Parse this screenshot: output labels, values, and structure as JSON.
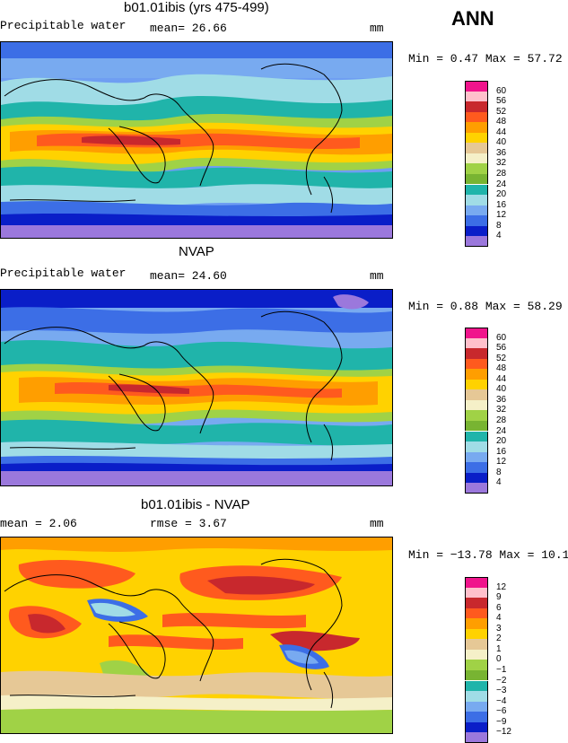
{
  "season": "ANN",
  "panels": [
    {
      "title": "b01.01ibis (yrs 475-499)",
      "left_label": "Precipitable water",
      "mid_label": "mean=  26.66",
      "units": "mm",
      "minmax": "Min =   0.47 Max =  57.72",
      "levels": [
        "60",
        "56",
        "52",
        "48",
        "44",
        "40",
        "36",
        "32",
        "28",
        "24",
        "20",
        "16",
        "12",
        "8",
        "4"
      ],
      "colors": [
        "#f0148c",
        "#ffc0cb",
        "#c8282d",
        "#ff5a1e",
        "#ff9e00",
        "#ffd200",
        "#e6c896",
        "#f5f0c8",
        "#a0d246",
        "#78b432",
        "#20b4aa",
        "#a0dce6",
        "#78aaf0",
        "#3c6ee6",
        "#0a1ec8",
        "#9b78dc"
      ]
    },
    {
      "title": "NVAP",
      "left_label": "Precipitable water",
      "mid_label": "mean=  24.60",
      "units": "mm",
      "minmax": "Min =   0.88 Max =  58.29",
      "levels": [
        "60",
        "56",
        "52",
        "48",
        "44",
        "40",
        "36",
        "32",
        "28",
        "24",
        "20",
        "16",
        "12",
        "8",
        "4"
      ],
      "colors": [
        "#f0148c",
        "#ffc0cb",
        "#c8282d",
        "#ff5a1e",
        "#ff9e00",
        "#ffd200",
        "#e6c896",
        "#f5f0c8",
        "#a0d246",
        "#78b432",
        "#20b4aa",
        "#a0dce6",
        "#78aaf0",
        "#3c6ee6",
        "#0a1ec8",
        "#9b78dc"
      ]
    },
    {
      "title": "b01.01ibis - NVAP",
      "left_label": "mean =   2.06",
      "mid_label": "rmse =   3.67",
      "units": "mm",
      "minmax": "Min = −13.78 Max =  10.19",
      "levels": [
        "12",
        "9",
        "6",
        "4",
        "3",
        "2",
        "1",
        "0",
        "−1",
        "−2",
        "−3",
        "−4",
        "−6",
        "−9",
        "−12"
      ],
      "colors": [
        "#f0148c",
        "#ffc0cb",
        "#c8282d",
        "#ff5a1e",
        "#ff9e00",
        "#ffd200",
        "#e6c896",
        "#f5f0c8",
        "#a0d246",
        "#78b432",
        "#20b4aa",
        "#a0dce6",
        "#78aaf0",
        "#3c6ee6",
        "#0a1ec8",
        "#9b78dc"
      ]
    }
  ]
}
